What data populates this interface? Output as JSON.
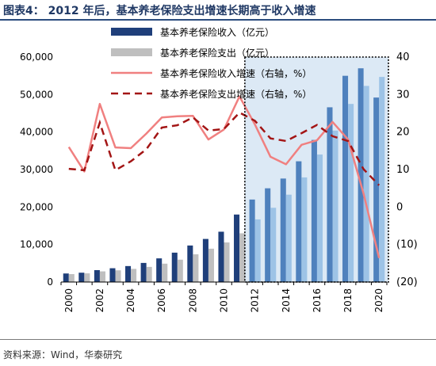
{
  "title": "图表4： 2012 年后，基本养老保险支出增速长期高于收入增速",
  "source": "资料来源：Wind，华泰研究",
  "chart_data": {
    "type": "bar",
    "title": "",
    "categories": [
      "2000",
      "2001",
      "2002",
      "2003",
      "2004",
      "2005",
      "2006",
      "2007",
      "2008",
      "2009",
      "2010",
      "2011",
      "2012",
      "2013",
      "2014",
      "2015",
      "2016",
      "2017",
      "2018",
      "2019",
      "2020"
    ],
    "x_tick_labels": [
      "2000",
      "2002",
      "2004",
      "2006",
      "2008",
      "2010",
      "2012",
      "2014",
      "2016",
      "2018",
      "2020"
    ],
    "left_axis": {
      "ylim": [
        0,
        60000
      ],
      "ticks": [
        "0",
        "10,000",
        "20,000",
        "30,000",
        "40,000",
        "50,000",
        "60,000"
      ]
    },
    "right_axis": {
      "ylim": [
        -20,
        40
      ],
      "ticks": [
        "(20)",
        "(10)",
        "0",
        "10",
        "20",
        "30",
        "40"
      ]
    },
    "grid": false,
    "legend_position": "top",
    "highlight_region": {
      "from": "2012",
      "to": "2020",
      "style": "dotted-box"
    },
    "series": [
      {
        "name": "基本养老保险收入（亿元）",
        "kind": "bar",
        "axis": "left",
        "color": "#1f3f7a",
        "values": [
          2278,
          2489,
          3172,
          3680,
          4258,
          5093,
          6310,
          7834,
          9740,
          11491,
          13420,
          18000,
          22000,
          25000,
          27600,
          32200,
          37900,
          46600,
          55000,
          57000,
          49200
        ]
      },
      {
        "name": "基本养老保险支出（亿元）",
        "kind": "bar",
        "axis": "left",
        "color": "#bfbfbf",
        "values": [
          2115,
          2321,
          2843,
          3122,
          3502,
          4040,
          4897,
          5965,
          7390,
          8894,
          10555,
          13000,
          16700,
          19800,
          23300,
          27900,
          34000,
          40400,
          47500,
          52300,
          54700
        ]
      },
      {
        "name": "基本养老保险收入增速（右轴，%）",
        "kind": "line",
        "axis": "right",
        "color": "#f08080",
        "values": [
          16,
          9.5,
          27.5,
          15.9,
          15.7,
          19.6,
          23.9,
          24.2,
          24.3,
          18.0,
          20.7,
          29.5,
          22.0,
          13.4,
          11.4,
          16.6,
          17.8,
          22.7,
          18.0,
          3.6,
          -13.6
        ]
      },
      {
        "name": "基本养老保险支出增速（右轴，%）",
        "kind": "line",
        "axis": "right",
        "color": "#a31515",
        "values": [
          10.2,
          9.8,
          22.5,
          9.8,
          12.2,
          15.4,
          21.2,
          21.8,
          23.9,
          20.4,
          20.8,
          25.2,
          23.0,
          18.3,
          17.6,
          19.7,
          21.9,
          18.9,
          17.6,
          10.1,
          5.8
        ]
      }
    ]
  }
}
